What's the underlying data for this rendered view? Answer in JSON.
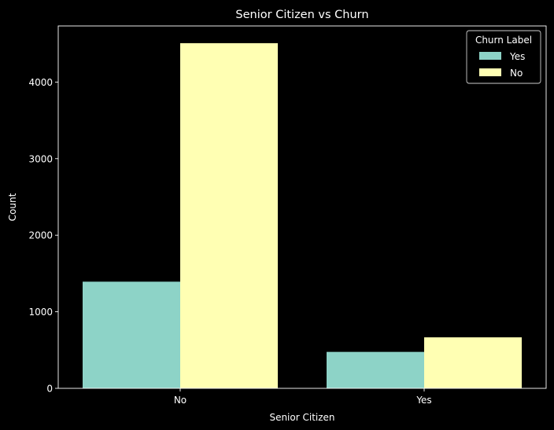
{
  "chart_data": {
    "type": "bar",
    "title": "Senior Citizen vs Churn",
    "xlabel": "Senior Citizen",
    "ylabel": "Count",
    "categories": [
      "No",
      "Yes"
    ],
    "series": [
      {
        "name": "Yes",
        "values": [
          1393,
          476
        ],
        "color": "#8dd3c7"
      },
      {
        "name": "No",
        "values": [
          4508,
          666
        ],
        "color": "#ffffb3"
      }
    ],
    "ylim": [
      0,
      4733
    ],
    "yticks": [
      0,
      1000,
      2000,
      3000,
      4000
    ],
    "legend": {
      "title": "Churn Label",
      "position": "top-right"
    },
    "grid": false,
    "background": "#000000",
    "axis_color": "#ffffff"
  }
}
